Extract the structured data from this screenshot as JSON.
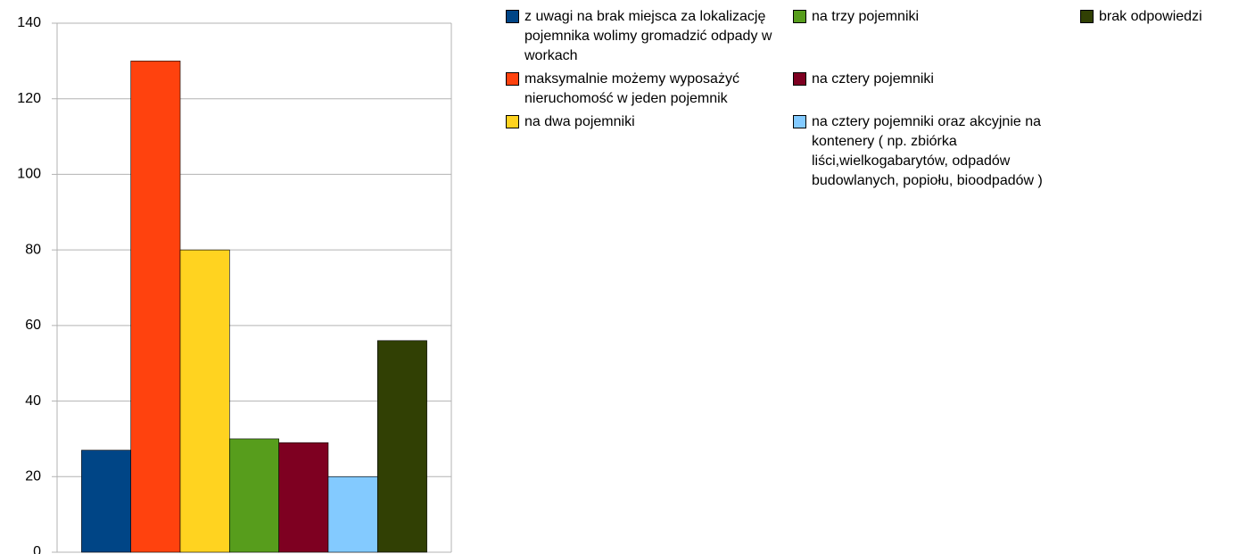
{
  "chart_data": {
    "type": "bar",
    "categories": [
      null
    ],
    "series": [
      {
        "name": "z uwagi na brak miejsca za lokalizację pojemnika wolimy gromadzić odpady w workach",
        "color": "#004586",
        "values": [
          27
        ]
      },
      {
        "name": "maksymalnie możemy wyposażyć nieruchomość w jeden pojemnik",
        "color": "#ff420e",
        "values": [
          130
        ]
      },
      {
        "name": "na dwa pojemniki",
        "color": "#ffd320",
        "values": [
          80
        ]
      },
      {
        "name": "na trzy pojemniki",
        "color": "#579d1c",
        "values": [
          30
        ]
      },
      {
        "name": "na cztery pojemniki",
        "color": "#7e0021",
        "values": [
          29
        ]
      },
      {
        "name": "na cztery pojemniki oraz akcyjnie na kontenery ( np. zbiórka liści,wielkogabarytów, odpadów budowlanych, popiołu, bioodpadów )",
        "color": "#83caff",
        "values": [
          20
        ]
      },
      {
        "name": "brak odpowiedzi",
        "color": "#314004",
        "values": [
          56
        ]
      }
    ],
    "ylim": [
      0,
      140
    ],
    "yticks": [
      0,
      20,
      40,
      60,
      80,
      100,
      120,
      140
    ],
    "grid": true,
    "legend": "right"
  }
}
